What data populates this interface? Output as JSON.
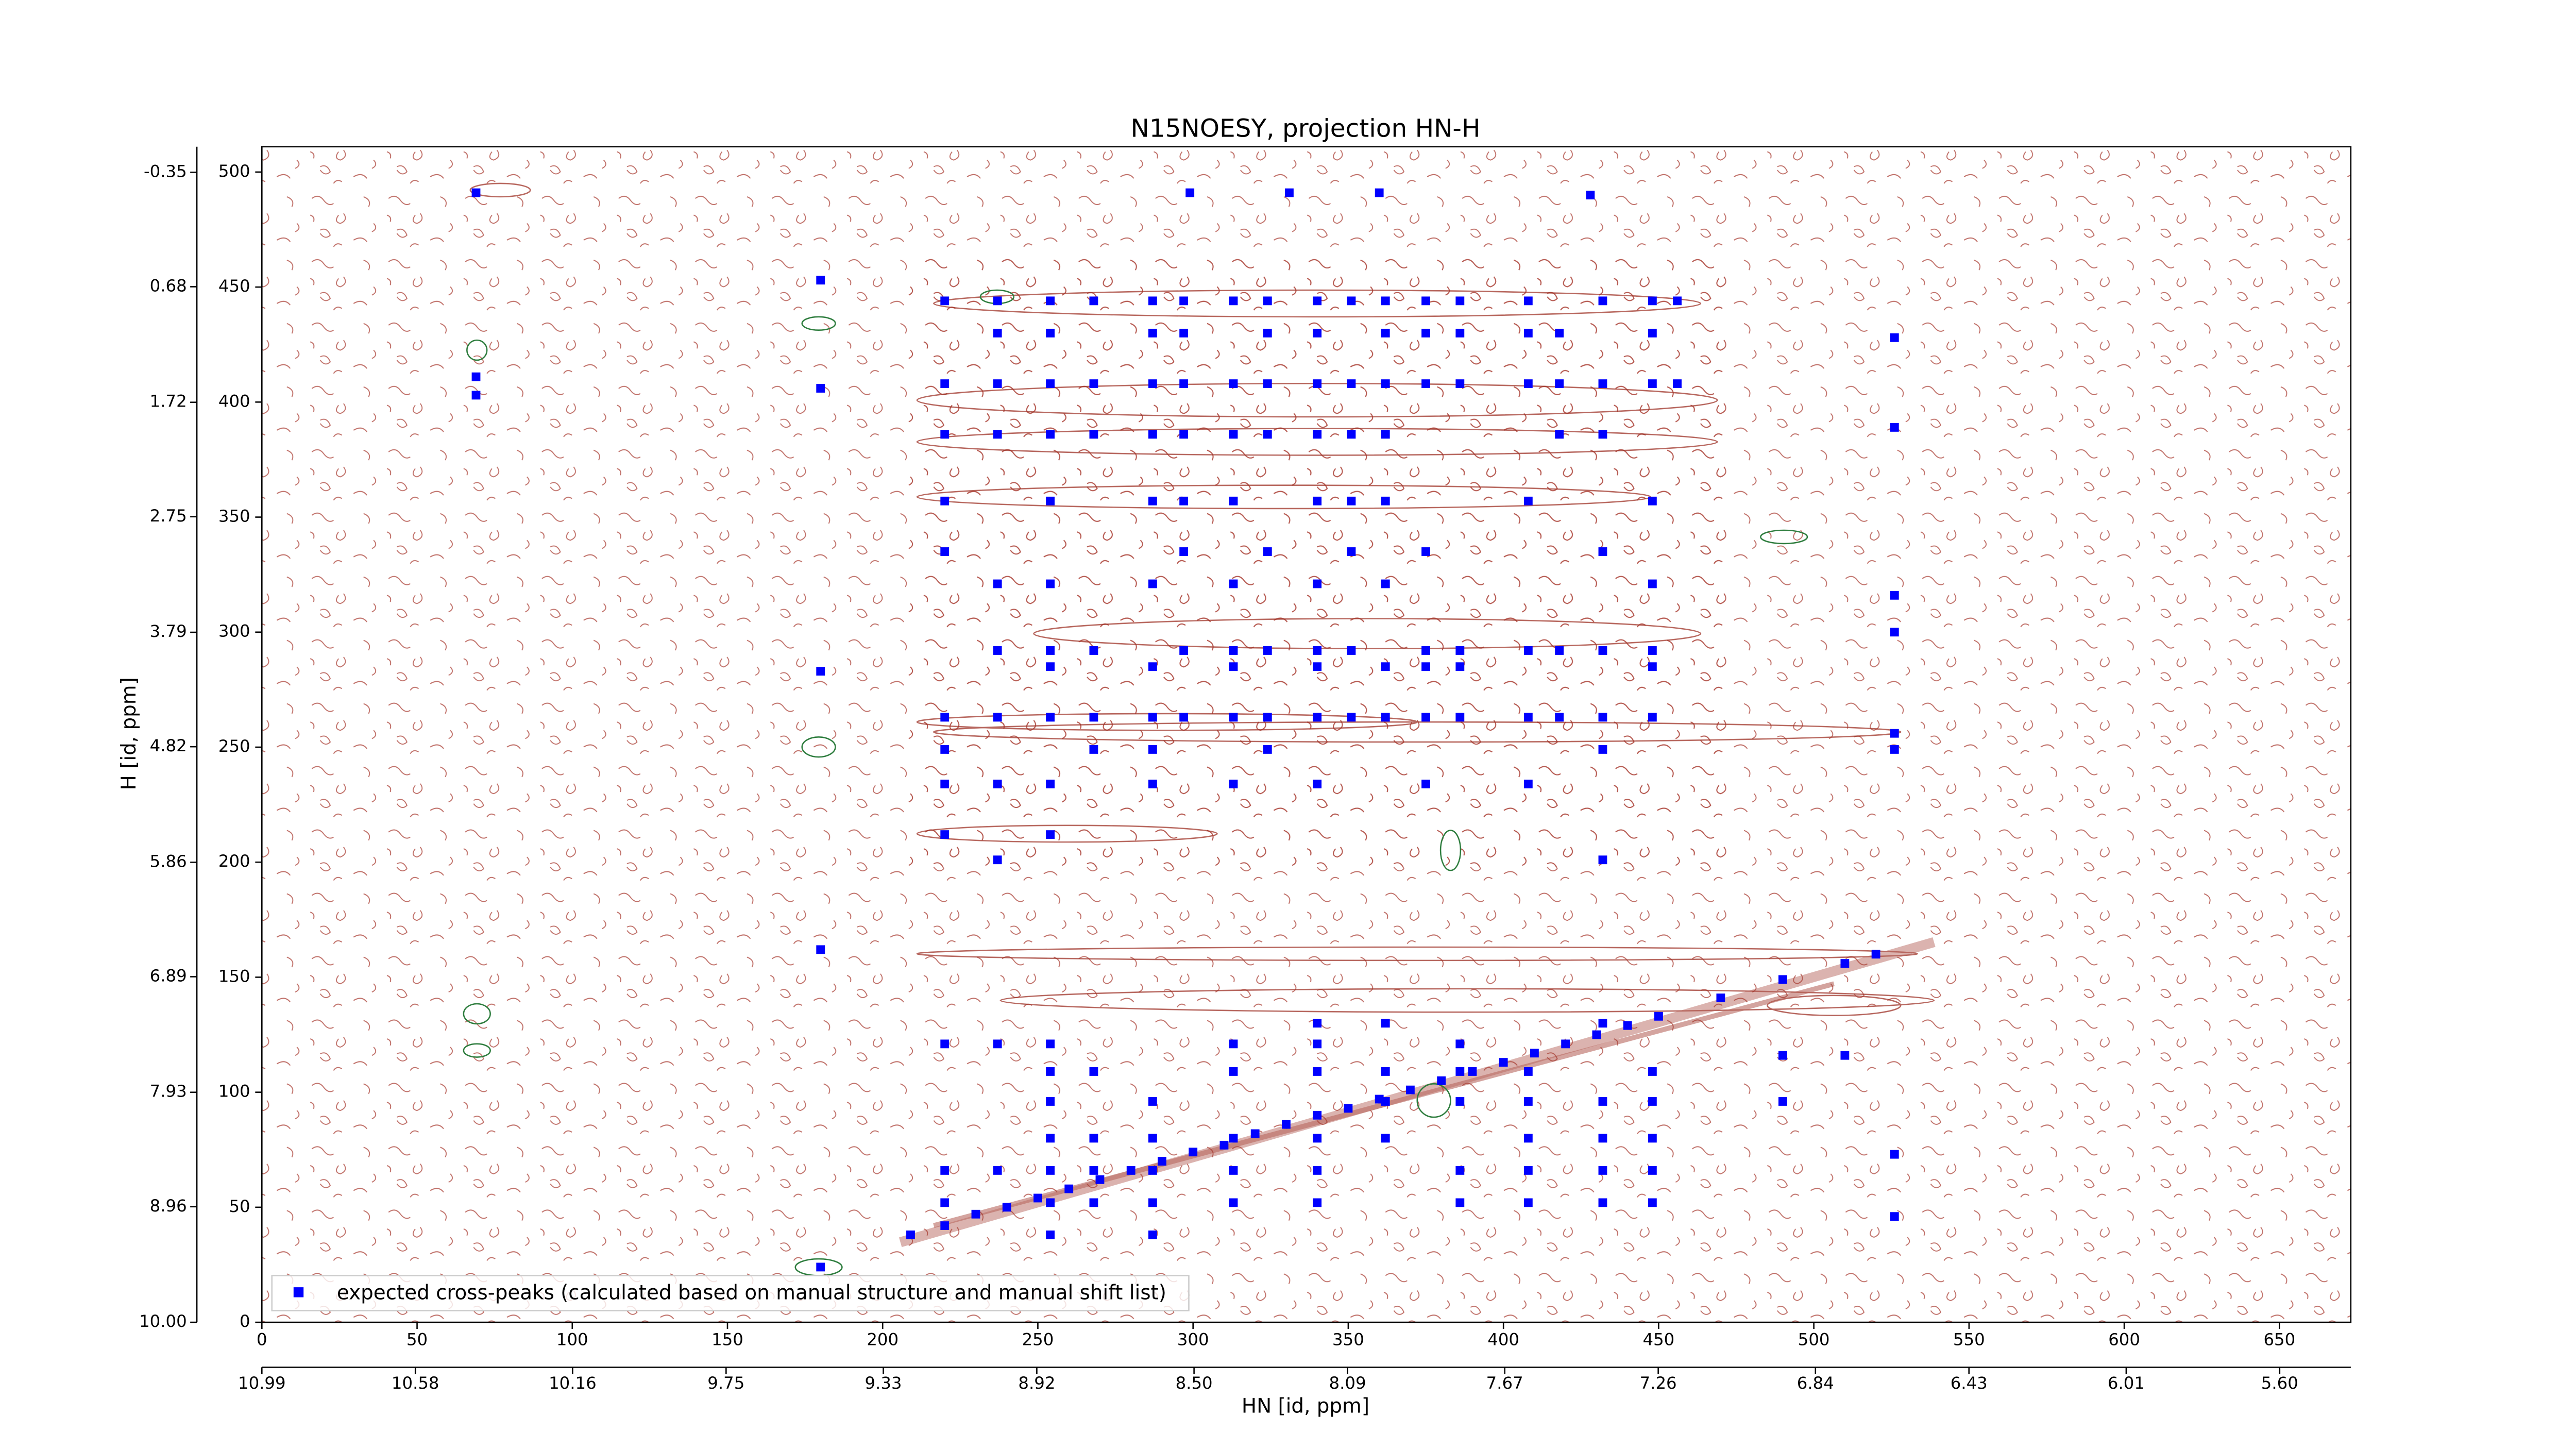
{
  "chart_data": {
    "type": "scatter",
    "title": "N15NOESY, projection HN-H",
    "x_label": "HN [id, ppm]",
    "y_label": "H [id, ppm]",
    "xlim": [
      0,
      673
    ],
    "ylim": [
      0,
      511
    ],
    "xticks": [
      0,
      50,
      100,
      150,
      200,
      250,
      300,
      350,
      400,
      450,
      500,
      550,
      600,
      650
    ],
    "yticks": [
      0,
      50,
      100,
      150,
      200,
      250,
      300,
      350,
      400,
      450,
      500
    ],
    "x2lim": [
      10.99,
      5.41
    ],
    "x2ticks": [
      10.99,
      10.58,
      10.16,
      9.75,
      9.33,
      8.92,
      {
        "value": 8.5,
        "label": "8.50"
      },
      8.09,
      7.67,
      7.26,
      6.84,
      6.43,
      6.01,
      {
        "value": 5.6,
        "label": "5.60"
      }
    ],
    "y2lim": [
      10,
      -0.58
    ],
    "y2ticks": [
      -0.35,
      0.68,
      1.72,
      2.75,
      3.79,
      4.82,
      5.86,
      6.89,
      7.93,
      8.96,
      {
        "value": 10,
        "label": "10.00"
      }
    ],
    "legend": "lower left",
    "series": [
      {
        "name": "expected cross-peaks (calculated based on manual structure and manual shift list)",
        "color": "#0000ff",
        "x": [
          69,
          69,
          69,
          180,
          180,
          180,
          180,
          180,
          526,
          526,
          526,
          526,
          526,
          526,
          526,
          526,
          428,
          331,
          299,
          360,
          220,
          220,
          220,
          220,
          220,
          220,
          220,
          220,
          220,
          237,
          237,
          237,
          237,
          237,
          237,
          237,
          237,
          237,
          254,
          254,
          254,
          254,
          254,
          254,
          254,
          254,
          254,
          254,
          254,
          268,
          268,
          268,
          268,
          268,
          268,
          287,
          287,
          287,
          287,
          287,
          287,
          287,
          287,
          287,
          287,
          297,
          297,
          297,
          297,
          297,
          297,
          297,
          297,
          313,
          313,
          313,
          313,
          313,
          313,
          313,
          313,
          313,
          324,
          324,
          324,
          324,
          324,
          324,
          324,
          324,
          340,
          340,
          340,
          340,
          340,
          340,
          340,
          340,
          340,
          340,
          351,
          351,
          351,
          351,
          351,
          351,
          351,
          362,
          362,
          362,
          362,
          362,
          362,
          362,
          362,
          375,
          375,
          375,
          375,
          375,
          375,
          375,
          375,
          386,
          386,
          386,
          386,
          386,
          386,
          408,
          408,
          408,
          408,
          408,
          408,
          408,
          418,
          418,
          418,
          418,
          418,
          432,
          432,
          432,
          432,
          432,
          432,
          432,
          432,
          448,
          448,
          448,
          448,
          448,
          448,
          448,
          448,
          456,
          456,
          209,
          220,
          230,
          240,
          250,
          260,
          270,
          280,
          290,
          300,
          310,
          320,
          330,
          340,
          350,
          360,
          370,
          380,
          390,
          400,
          410,
          420,
          430,
          440,
          450,
          470,
          490,
          510,
          520,
          254,
          254,
          254,
          254,
          254,
          254,
          254,
          268,
          268,
          268,
          268,
          287,
          287,
          287,
          287,
          287,
          313,
          313,
          313,
          313,
          313,
          340,
          340,
          340,
          340,
          340,
          340,
          362,
          362,
          362,
          362,
          386,
          386,
          386,
          386,
          386,
          408,
          408,
          408,
          408,
          408,
          432,
          432,
          432,
          432,
          432,
          448,
          448,
          448,
          448,
          448,
          220,
          220,
          220,
          237,
          237,
          490,
          490,
          510
        ],
        "values": [
          491,
          411,
          403,
          453,
          406,
          283,
          162,
          24,
          428,
          389,
          316,
          300,
          256,
          249,
          46,
          73,
          490,
          491,
          491,
          491,
          444,
          408,
          386,
          357,
          335,
          263,
          249,
          234,
          212,
          444,
          430,
          408,
          386,
          321,
          292,
          263,
          234,
          201,
          444,
          430,
          408,
          386,
          357,
          321,
          292,
          285,
          263,
          234,
          212,
          444,
          408,
          386,
          292,
          263,
          249,
          444,
          430,
          408,
          386,
          357,
          321,
          285,
          263,
          249,
          234,
          444,
          430,
          408,
          386,
          357,
          335,
          292,
          263,
          444,
          408,
          386,
          357,
          321,
          292,
          285,
          263,
          234,
          444,
          430,
          408,
          386,
          335,
          292,
          263,
          249,
          444,
          430,
          408,
          386,
          357,
          321,
          292,
          285,
          263,
          234,
          444,
          408,
          386,
          357,
          335,
          292,
          263,
          444,
          430,
          408,
          386,
          357,
          321,
          285,
          263,
          444,
          430,
          408,
          335,
          292,
          285,
          263,
          234,
          444,
          430,
          408,
          292,
          285,
          263,
          444,
          430,
          408,
          357,
          292,
          263,
          234,
          430,
          408,
          386,
          292,
          263,
          444,
          408,
          386,
          335,
          292,
          263,
          249,
          201,
          444,
          430,
          408,
          357,
          321,
          292,
          285,
          263,
          444,
          408,
          38,
          42,
          47,
          50,
          54,
          58,
          62,
          66,
          70,
          74,
          77,
          82,
          86,
          90,
          93,
          97,
          101,
          105,
          109,
          113,
          117,
          121,
          125,
          129,
          133,
          141,
          149,
          156,
          160,
          121,
          109,
          96,
          80,
          66,
          52,
          38,
          109,
          80,
          66,
          52,
          96,
          80,
          66,
          52,
          38,
          121,
          109,
          80,
          66,
          52,
          130,
          121,
          109,
          80,
          66,
          52,
          130,
          109,
          96,
          80,
          121,
          109,
          96,
          66,
          52,
          109,
          96,
          80,
          66,
          52,
          130,
          96,
          80,
          66,
          52,
          109,
          96,
          80,
          66,
          52,
          121,
          66,
          52,
          121,
          66,
          116,
          96,
          116
        ]
      }
    ]
  }
}
